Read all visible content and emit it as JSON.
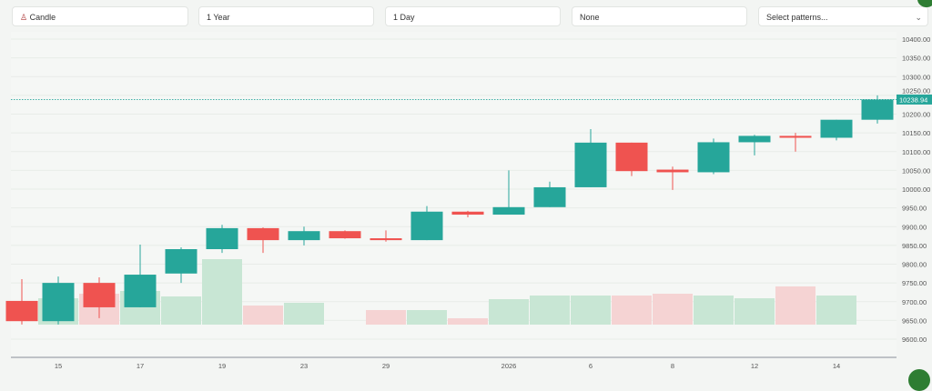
{
  "controls": {
    "chart_type": "Candle",
    "range": "1 Year",
    "interval": "1 Day",
    "indicator": "None",
    "patterns_placeholder": "Select patterns..."
  },
  "colors": {
    "up": "#26a69a",
    "down": "#ef5350",
    "up_volume": "#c8e6d4",
    "down_volume": "#f5d3d3"
  },
  "chart_data": {
    "type": "candlestick",
    "title": "",
    "ylim": [
      9580,
      10420
    ],
    "y_ticks": [
      "10400.00",
      "10350.00",
      "10300.00",
      "10250.00",
      "10200.00",
      "10150.00",
      "10100.00",
      "10050.00",
      "10000.00",
      "9950.00",
      "9900.00",
      "9850.00",
      "9800.00",
      "9750.00",
      "9700.00",
      "9650.00",
      "9600.00"
    ],
    "x_tick_labels": [
      {
        "index": 1,
        "label": "15"
      },
      {
        "index": 3,
        "label": "17"
      },
      {
        "index": 5,
        "label": "19"
      },
      {
        "index": 7,
        "label": "23"
      },
      {
        "index": 9,
        "label": "29"
      },
      {
        "index": 12,
        "label": "2026"
      },
      {
        "index": 14,
        "label": "6"
      },
      {
        "index": 16,
        "label": "8"
      },
      {
        "index": 18,
        "label": "12"
      },
      {
        "index": 20,
        "label": "14"
      }
    ],
    "last_price": "10238.94",
    "candles": [
      {
        "o": 9702,
        "h": 9760,
        "l": 9639,
        "c": 9648,
        "v": 0
      },
      {
        "o": 9648,
        "h": 9767,
        "l": 9639,
        "c": 9750,
        "v": 29
      },
      {
        "o": 9750,
        "h": 9765,
        "l": 9656,
        "c": 9685,
        "v": 34
      },
      {
        "o": 9685,
        "h": 9852,
        "l": 9685,
        "c": 9772,
        "v": 37
      },
      {
        "o": 9775,
        "h": 9845,
        "l": 9750,
        "c": 9840,
        "v": 31
      },
      {
        "o": 9840,
        "h": 9905,
        "l": 9830,
        "c": 9896,
        "v": 72
      },
      {
        "o": 9896,
        "h": 9898,
        "l": 9830,
        "c": 9864,
        "v": 21
      },
      {
        "o": 9864,
        "h": 9900,
        "l": 9850,
        "c": 9888,
        "v": 24
      },
      {
        "o": 9888,
        "h": 9890,
        "l": 9868,
        "c": 9869,
        "v": 0
      },
      {
        "o": 9869,
        "h": 9890,
        "l": 9860,
        "c": 9864,
        "v": 16
      },
      {
        "o": 9864,
        "h": 9955,
        "l": 9864,
        "c": 9940,
        "v": 16
      },
      {
        "o": 9940,
        "h": 9942,
        "l": 9925,
        "c": 9932,
        "v": 7
      },
      {
        "o": 9932,
        "h": 10050,
        "l": 9932,
        "c": 9952,
        "v": 28
      },
      {
        "o": 9952,
        "h": 10020,
        "l": 9952,
        "c": 10005,
        "v": 32
      },
      {
        "o": 10005,
        "h": 10160,
        "l": 10005,
        "c": 10124,
        "v": 32
      },
      {
        "o": 10124,
        "h": 10124,
        "l": 10035,
        "c": 10048,
        "v": 32
      },
      {
        "o": 10052,
        "h": 10060,
        "l": 9998,
        "c": 10045,
        "v": 34
      },
      {
        "o": 10045,
        "h": 10135,
        "l": 10040,
        "c": 10125,
        "v": 32
      },
      {
        "o": 10125,
        "h": 10145,
        "l": 10090,
        "c": 10142,
        "v": 29
      },
      {
        "o": 10142,
        "h": 10150,
        "l": 10100,
        "c": 10137,
        "v": 42
      },
      {
        "o": 10137,
        "h": 10185,
        "l": 10130,
        "c": 10185,
        "v": 32
      },
      {
        "o": 10185,
        "h": 10250,
        "l": 10175,
        "c": 10238.94,
        "v": 0
      }
    ]
  }
}
